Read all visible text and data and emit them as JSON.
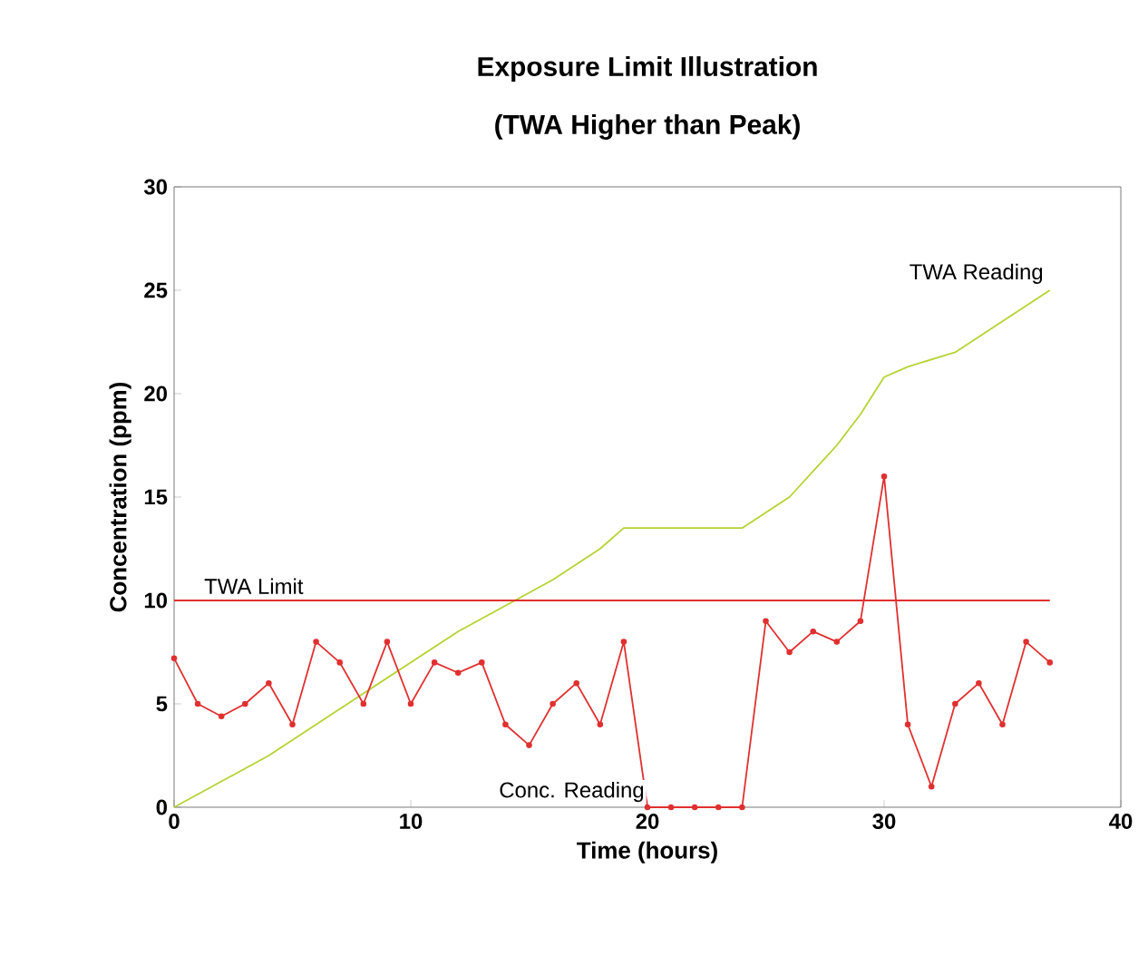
{
  "chart_data": {
    "type": "line",
    "title": "Exposure Limit Illustration",
    "subtitle": "(TWA Higher than Peak)",
    "xlabel": "Time (hours)",
    "ylabel": "Concentration (ppm)",
    "xlim": [
      0,
      40
    ],
    "xticks": [
      0,
      10,
      20,
      30,
      40
    ],
    "ylim": [
      0,
      30
    ],
    "yticks": [
      0,
      5,
      10,
      15,
      20,
      25,
      30
    ],
    "grid": false,
    "series": [
      {
        "name": "TWA Reading",
        "color": "#b5d334",
        "marker": "none",
        "x": [
          0,
          4,
          8,
          12,
          16,
          18,
          19,
          24,
          26,
          28,
          29,
          30,
          31,
          33,
          35,
          37
        ],
        "values": [
          0,
          2.5,
          5.5,
          8.5,
          11,
          12.5,
          13.5,
          13.5,
          15,
          17.5,
          19,
          20.8,
          21.3,
          22,
          23.5,
          25
        ]
      },
      {
        "name": "Conc. Reading",
        "color": "#e03030",
        "marker": "circle",
        "x": [
          0,
          1,
          2,
          3,
          4,
          5,
          6,
          7,
          8,
          9,
          10,
          11,
          12,
          13,
          14,
          15,
          16,
          17,
          18,
          19,
          20,
          21,
          22,
          23,
          24,
          25,
          26,
          27,
          28,
          29,
          30,
          31,
          32,
          33,
          34,
          35,
          36,
          37
        ],
        "values": [
          7.2,
          5,
          4.4,
          5,
          6,
          4,
          8,
          7,
          5,
          8,
          5,
          7,
          6.5,
          7,
          4,
          3,
          5,
          6,
          4,
          8,
          0,
          0,
          0,
          0,
          0,
          9,
          7.5,
          8.5,
          8,
          9,
          16,
          4,
          1,
          5,
          6,
          4,
          8,
          7
        ]
      }
    ],
    "ref_lines": [
      {
        "axis": "y",
        "value": 10,
        "label": "TWA Limit",
        "color": "#e03030"
      }
    ]
  }
}
